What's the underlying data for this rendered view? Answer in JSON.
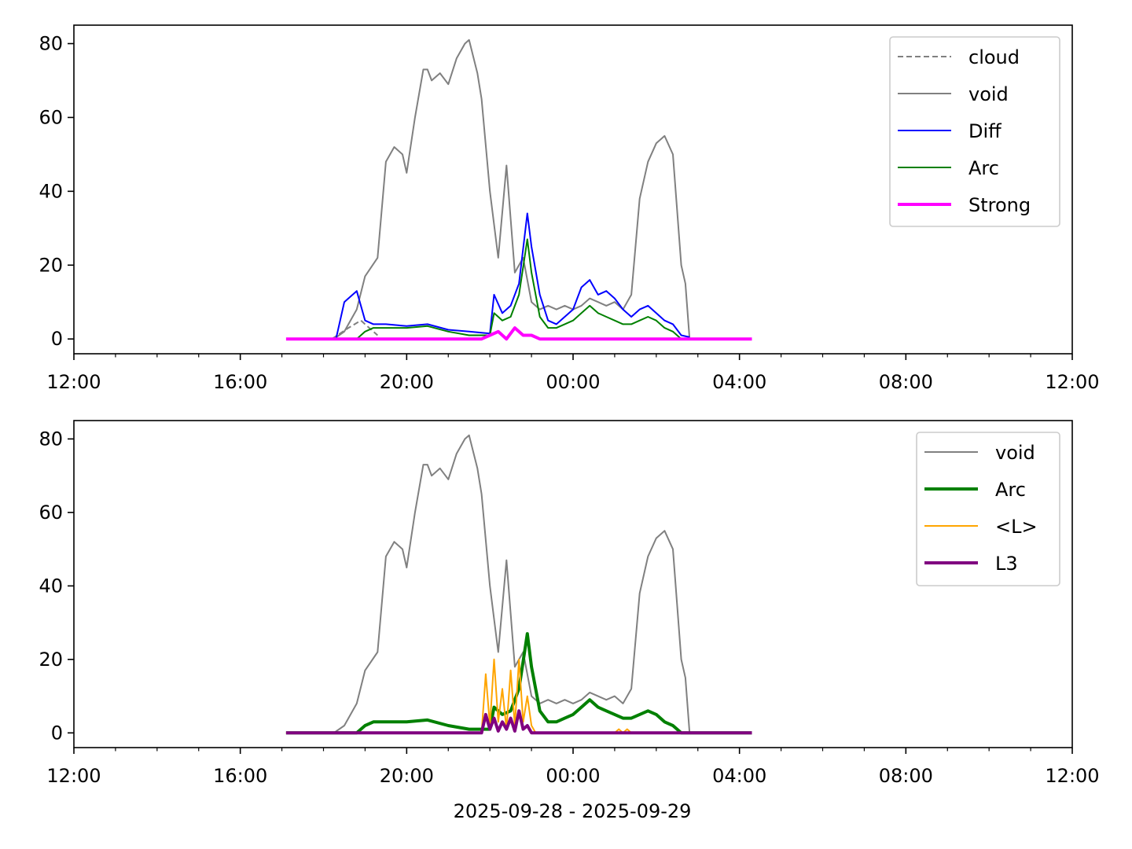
{
  "figure": {
    "xlabel": "2025-09-28 - 2025-09-29"
  },
  "chart_data": [
    {
      "type": "line",
      "x_axis": {
        "range": [
          "2025-09-28 12:00",
          "2025-09-29 12:00"
        ],
        "major_ticks": [
          "12:00",
          "16:00",
          "20:00",
          "00:00",
          "04:00",
          "08:00",
          "12:00"
        ],
        "major_tick_hours": [
          12,
          16,
          20,
          24,
          28,
          32,
          36
        ],
        "minor_tick_hours": [
          13,
          14,
          15,
          17,
          18,
          19,
          21,
          22,
          23,
          25,
          26,
          27,
          29,
          30,
          31,
          33,
          34,
          35
        ]
      },
      "y_axis": {
        "range": [
          -4,
          85
        ],
        "ticks": [
          0,
          20,
          40,
          60,
          80
        ]
      },
      "grid": false,
      "legend_position": "top-right",
      "series": [
        {
          "name": "cloud",
          "color": "#808080",
          "style": "dashed",
          "width": 2,
          "x": [
            18.2,
            18.6,
            18.9,
            19.1,
            19.3
          ],
          "y": [
            0,
            3,
            5,
            3,
            1
          ]
        },
        {
          "name": "void",
          "color": "#808080",
          "style": "solid",
          "width": 2,
          "x": [
            18.25,
            18.5,
            18.8,
            19.0,
            19.3,
            19.5,
            19.7,
            19.9,
            20.0,
            20.2,
            20.4,
            20.5,
            20.6,
            20.8,
            21.0,
            21.2,
            21.4,
            21.5,
            21.7,
            21.8,
            22.0,
            22.2,
            22.4,
            22.6,
            22.8,
            23.0,
            23.2,
            23.4,
            23.6,
            23.8,
            24.0,
            24.2,
            24.4,
            24.6,
            24.8,
            25.0,
            25.2,
            25.4,
            25.6,
            25.8,
            26.0,
            26.2,
            26.4,
            26.6,
            26.7,
            26.8
          ],
          "y": [
            0,
            2,
            8,
            17,
            22,
            48,
            52,
            50,
            45,
            60,
            73,
            73,
            70,
            72,
            69,
            76,
            80,
            81,
            72,
            65,
            40,
            22,
            47,
            18,
            22,
            10,
            8,
            9,
            8,
            9,
            8,
            9,
            11,
            10,
            9,
            10,
            8,
            12,
            38,
            48,
            53,
            55,
            50,
            20,
            15,
            0
          ]
        },
        {
          "name": "Diff",
          "color": "#0000ff",
          "style": "solid",
          "width": 2,
          "x": [
            18.3,
            18.5,
            18.8,
            19.0,
            19.2,
            19.5,
            20.0,
            20.5,
            21.0,
            21.5,
            22.0,
            22.1,
            22.3,
            22.5,
            22.7,
            22.9,
            23.0,
            23.2,
            23.4,
            23.6,
            23.8,
            24.0,
            24.2,
            24.4,
            24.6,
            24.8,
            25.0,
            25.2,
            25.4,
            25.6,
            25.8,
            26.0,
            26.2,
            26.4,
            26.6,
            26.8
          ],
          "y": [
            0,
            10,
            13,
            5,
            4,
            4,
            3.5,
            4,
            2.5,
            2,
            1.5,
            12,
            7,
            9,
            15,
            34,
            25,
            12,
            5,
            4,
            6,
            8,
            14,
            16,
            12,
            13,
            11,
            8,
            6,
            8,
            9,
            7,
            5,
            4,
            1,
            0.5
          ]
        },
        {
          "name": "Arc",
          "color": "#008000",
          "style": "solid",
          "width": 2,
          "x": [
            18.8,
            19.0,
            19.2,
            19.5,
            20.0,
            20.5,
            21.0,
            21.5,
            22.0,
            22.1,
            22.3,
            22.5,
            22.7,
            22.9,
            23.0,
            23.2,
            23.4,
            23.6,
            23.8,
            24.0,
            24.2,
            24.4,
            24.6,
            24.8,
            25.0,
            25.2,
            25.4,
            25.6,
            25.8,
            26.0,
            26.2,
            26.4,
            26.6
          ],
          "y": [
            0,
            2,
            3,
            3,
            3,
            3.5,
            2,
            1,
            1,
            7,
            5,
            6,
            12,
            27,
            18,
            6,
            3,
            3,
            4,
            5,
            7,
            9,
            7,
            6,
            5,
            4,
            4,
            5,
            6,
            5,
            3,
            2,
            0
          ]
        },
        {
          "name": "Strong",
          "color": "#ff00ff",
          "style": "solid",
          "width": 4,
          "x": [
            17.1,
            21.8,
            22.0,
            22.2,
            22.4,
            22.6,
            22.8,
            23.0,
            23.2,
            28.3
          ],
          "y": [
            0,
            0,
            1,
            2,
            0,
            3,
            1,
            1,
            0,
            0
          ]
        }
      ]
    },
    {
      "type": "line",
      "x_axis": {
        "range": [
          "2025-09-28 12:00",
          "2025-09-29 12:00"
        ],
        "major_ticks": [
          "12:00",
          "16:00",
          "20:00",
          "00:00",
          "04:00",
          "08:00",
          "12:00"
        ],
        "major_tick_hours": [
          12,
          16,
          20,
          24,
          28,
          32,
          36
        ],
        "minor_tick_hours": [
          13,
          14,
          15,
          17,
          18,
          19,
          21,
          22,
          23,
          25,
          26,
          27,
          29,
          30,
          31,
          33,
          34,
          35
        ]
      },
      "y_axis": {
        "range": [
          -4,
          85
        ],
        "ticks": [
          0,
          20,
          40,
          60,
          80
        ]
      },
      "grid": false,
      "legend_position": "top-right",
      "series": [
        {
          "name": "void",
          "color": "#808080",
          "style": "solid",
          "width": 2,
          "x": [
            18.25,
            18.5,
            18.8,
            19.0,
            19.3,
            19.5,
            19.7,
            19.9,
            20.0,
            20.2,
            20.4,
            20.5,
            20.6,
            20.8,
            21.0,
            21.2,
            21.4,
            21.5,
            21.7,
            21.8,
            22.0,
            22.2,
            22.4,
            22.6,
            22.8,
            23.0,
            23.2,
            23.4,
            23.6,
            23.8,
            24.0,
            24.2,
            24.4,
            24.6,
            24.8,
            25.0,
            25.2,
            25.4,
            25.6,
            25.8,
            26.0,
            26.2,
            26.4,
            26.6,
            26.7,
            26.8
          ],
          "y": [
            0,
            2,
            8,
            17,
            22,
            48,
            52,
            50,
            45,
            60,
            73,
            73,
            70,
            72,
            69,
            76,
            80,
            81,
            72,
            65,
            40,
            22,
            47,
            18,
            22,
            10,
            8,
            9,
            8,
            9,
            8,
            9,
            11,
            10,
            9,
            10,
            8,
            12,
            38,
            48,
            53,
            55,
            50,
            20,
            15,
            0
          ]
        },
        {
          "name": "Arc",
          "color": "#008000",
          "style": "solid",
          "width": 4,
          "x": [
            17.1,
            18.8,
            19.0,
            19.2,
            19.5,
            20.0,
            20.5,
            21.0,
            21.5,
            22.0,
            22.1,
            22.3,
            22.5,
            22.7,
            22.9,
            23.0,
            23.2,
            23.4,
            23.6,
            23.8,
            24.0,
            24.2,
            24.4,
            24.6,
            24.8,
            25.0,
            25.2,
            25.4,
            25.6,
            25.8,
            26.0,
            26.2,
            26.4,
            26.6,
            28.3
          ],
          "y": [
            0,
            0,
            2,
            3,
            3,
            3,
            3.5,
            2,
            1,
            1,
            7,
            5,
            6,
            12,
            27,
            18,
            6,
            3,
            3,
            4,
            5,
            7,
            9,
            7,
            6,
            5,
            4,
            4,
            5,
            6,
            5,
            3,
            2,
            0,
            0
          ]
        },
        {
          "name": "<L>",
          "color": "#ffa500",
          "style": "solid",
          "width": 2,
          "x": [
            17.1,
            21.8,
            21.9,
            22.0,
            22.1,
            22.2,
            22.3,
            22.4,
            22.5,
            22.6,
            22.7,
            22.8,
            22.9,
            23.0,
            23.1,
            25.0,
            25.1,
            25.2,
            25.3,
            25.4,
            26.0,
            28.3
          ],
          "y": [
            0,
            0,
            16,
            2,
            20,
            3,
            12,
            1,
            17,
            2,
            20,
            3,
            10,
            2,
            0,
            0,
            1,
            0,
            1,
            0,
            0,
            0
          ]
        },
        {
          "name": "L3",
          "color": "#800080",
          "style": "solid",
          "width": 4,
          "x": [
            17.1,
            21.8,
            21.9,
            22.0,
            22.1,
            22.2,
            22.3,
            22.4,
            22.5,
            22.6,
            22.7,
            22.8,
            22.9,
            23.0,
            28.3
          ],
          "y": [
            0,
            0,
            5,
            1,
            4,
            0.5,
            3,
            1,
            4,
            0.5,
            6,
            1,
            2,
            0,
            0
          ]
        }
      ]
    }
  ]
}
